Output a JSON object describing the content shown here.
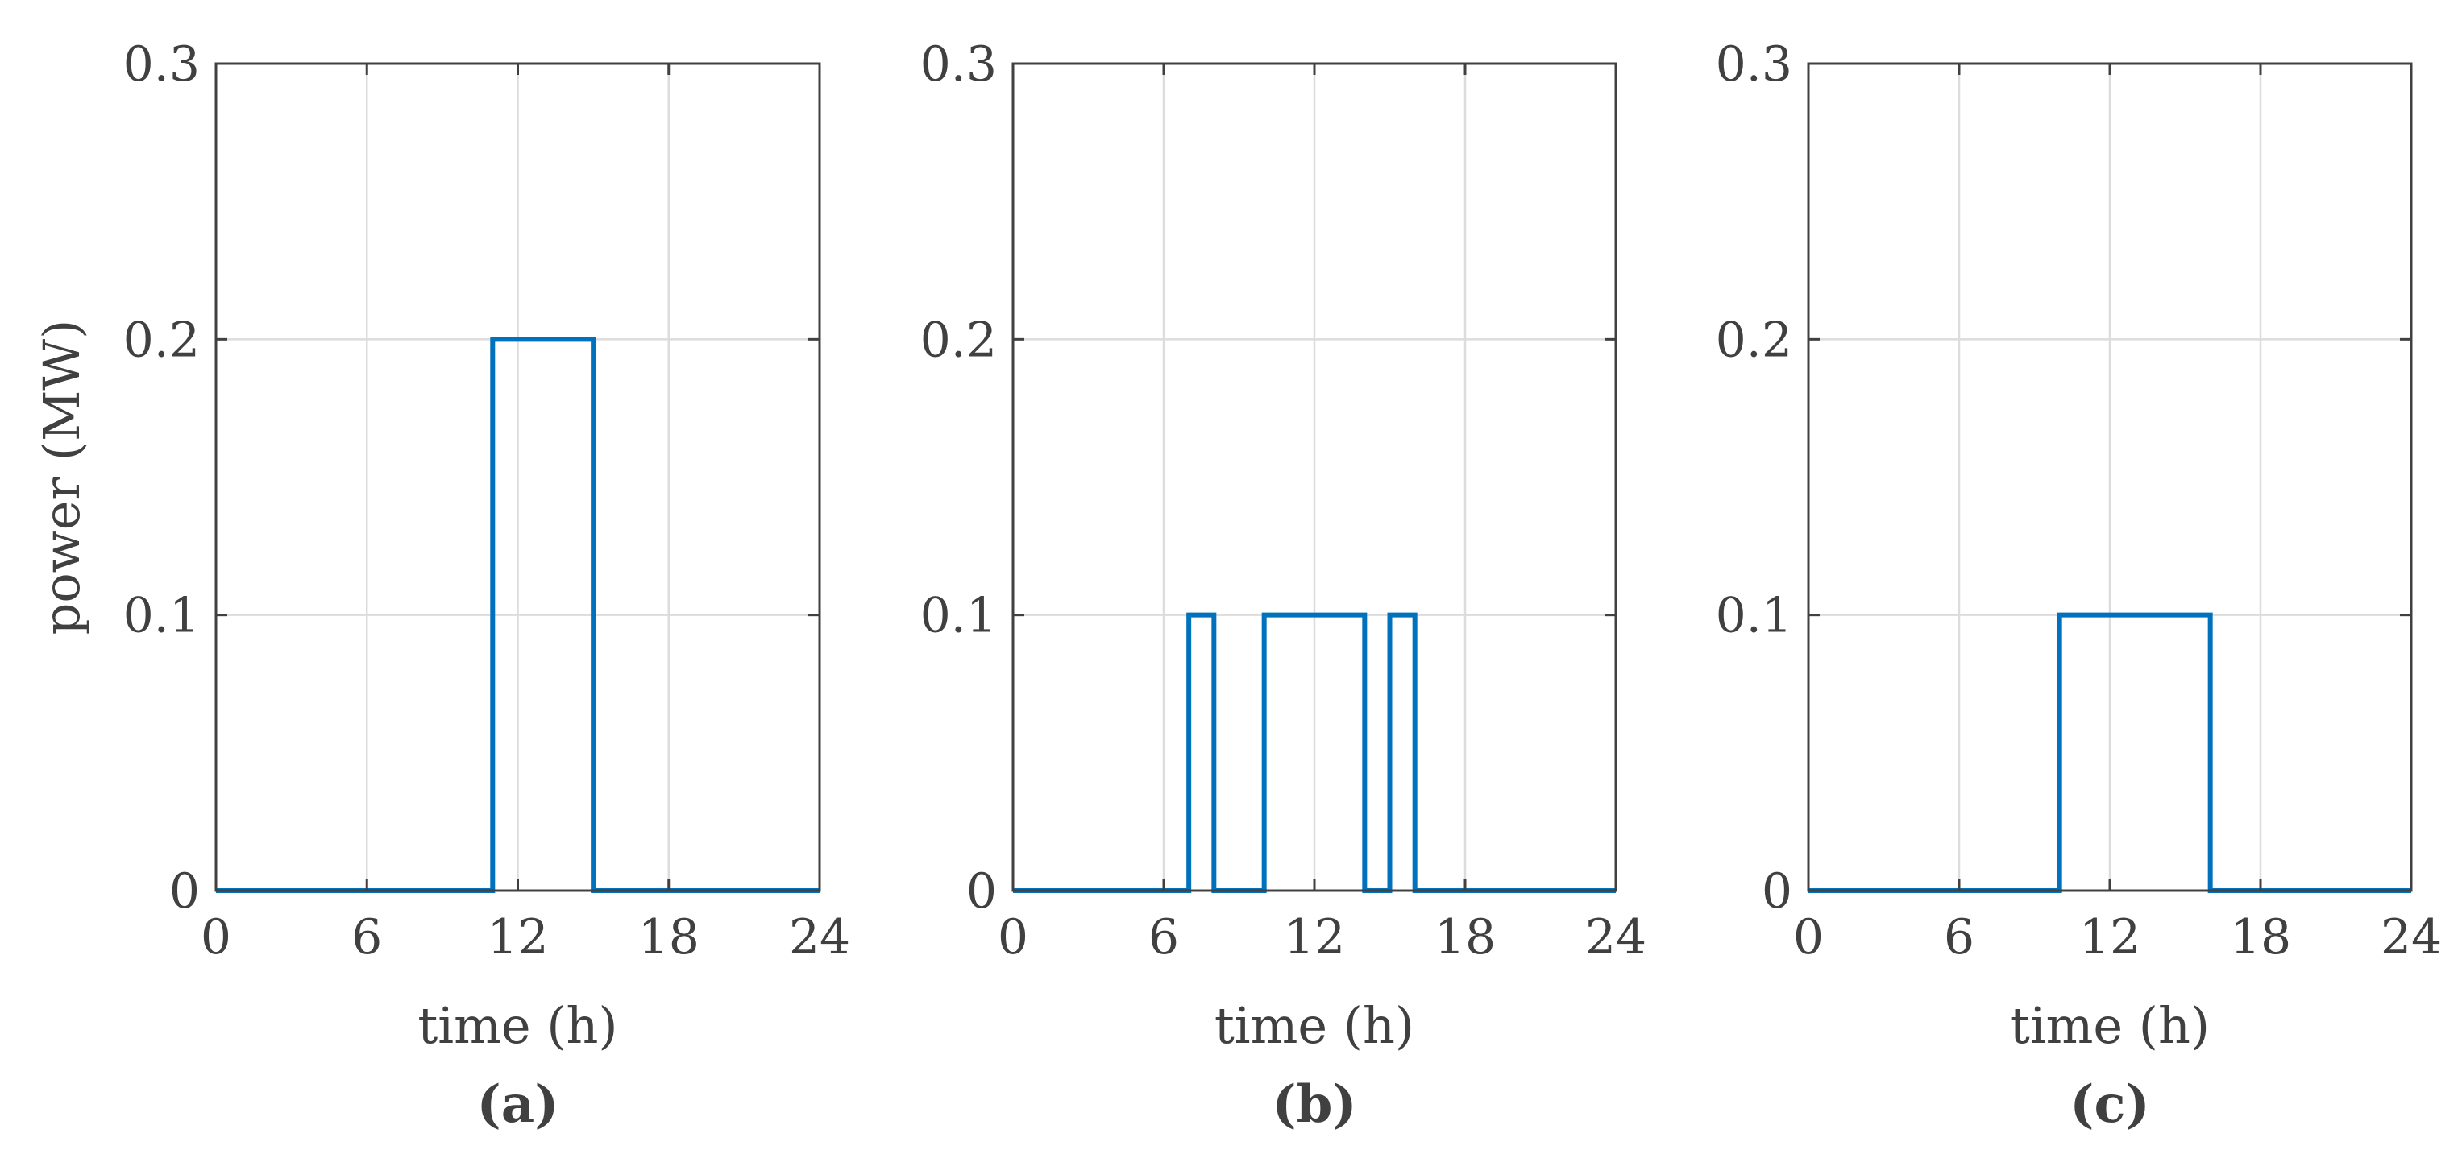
{
  "chart_data": [
    {
      "type": "line",
      "step": true,
      "panel_label": "(a)",
      "xlabel": "time (h)",
      "ylabel": "power (MW)",
      "xlim": [
        0,
        24
      ],
      "ylim": [
        0,
        0.3
      ],
      "xticks": [
        0,
        6,
        12,
        18,
        24
      ],
      "yticks": [
        0,
        0.1,
        0.2,
        0.3
      ],
      "xtick_labels": [
        "0",
        "6",
        "12",
        "18",
        "24"
      ],
      "ytick_labels": [
        "0",
        "0.1",
        "0.2",
        "0.3"
      ],
      "grid": true,
      "line_color": "#0072BD",
      "series": [
        {
          "x": [
            0,
            11,
            11,
            15,
            15,
            24
          ],
          "y": [
            0,
            0,
            0.2,
            0.2,
            0,
            0
          ]
        }
      ]
    },
    {
      "type": "line",
      "step": true,
      "panel_label": "(b)",
      "xlabel": "time (h)",
      "ylabel": "",
      "xlim": [
        0,
        24
      ],
      "ylim": [
        0,
        0.3
      ],
      "xticks": [
        0,
        6,
        12,
        18,
        24
      ],
      "yticks": [
        0,
        0.1,
        0.2,
        0.3
      ],
      "xtick_labels": [
        "0",
        "6",
        "12",
        "18",
        "24"
      ],
      "ytick_labels": [
        "0",
        "0.1",
        "0.2",
        "0.3"
      ],
      "grid": true,
      "line_color": "#0072BD",
      "series": [
        {
          "x": [
            0,
            7,
            7,
            8,
            8,
            10,
            10,
            14,
            14,
            15,
            15,
            16,
            16,
            24
          ],
          "y": [
            0,
            0,
            0.1,
            0.1,
            0,
            0,
            0.1,
            0.1,
            0,
            0,
            0.1,
            0.1,
            0,
            0
          ]
        }
      ]
    },
    {
      "type": "line",
      "step": true,
      "panel_label": "(c)",
      "xlabel": "time (h)",
      "ylabel": "",
      "xlim": [
        0,
        24
      ],
      "ylim": [
        0,
        0.3
      ],
      "xticks": [
        0,
        6,
        12,
        18,
        24
      ],
      "yticks": [
        0,
        0.1,
        0.2,
        0.3
      ],
      "xtick_labels": [
        "0",
        "6",
        "12",
        "18",
        "24"
      ],
      "ytick_labels": [
        "0",
        "0.1",
        "0.2",
        "0.3"
      ],
      "grid": true,
      "line_color": "#0072BD",
      "series": [
        {
          "x": [
            0,
            10,
            10,
            16,
            16,
            24
          ],
          "y": [
            0,
            0,
            0.1,
            0.1,
            0,
            0
          ]
        }
      ]
    }
  ]
}
